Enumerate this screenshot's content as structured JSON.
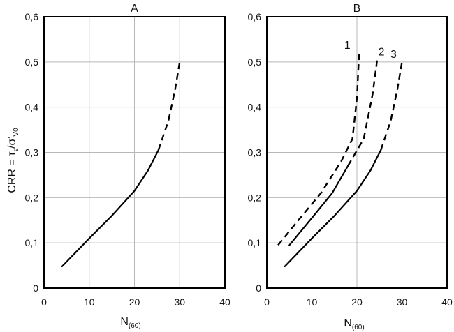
{
  "chart_data": [
    {
      "type": "line",
      "title": "A",
      "xlabel_main": "N",
      "xlabel_sub": "(60)",
      "ylabel": "CRR = τ",
      "ylabel_sub1": "ε",
      "ylabel_mid": "/σ'",
      "ylabel_sub2": "V0",
      "xlim": [
        0,
        40
      ],
      "ylim": [
        0,
        0.6
      ],
      "x_ticks": [
        "0",
        "10",
        "20",
        "30",
        "40"
      ],
      "y_ticks": [
        "0",
        "0,1",
        "0,2",
        "0,3",
        "0,4",
        "0,5",
        "0,6"
      ],
      "grid": true,
      "series": [
        {
          "label": "",
          "solid": [
            [
              4,
              0.048
            ],
            [
              10,
              0.11
            ],
            [
              15,
              0.16
            ],
            [
              20,
              0.215
            ],
            [
              23,
              0.26
            ],
            [
              25.3,
              0.305
            ]
          ],
          "dashed": [
            [
              25.3,
              0.305
            ],
            [
              27.5,
              0.37
            ],
            [
              29,
              0.44
            ],
            [
              30,
              0.5
            ]
          ]
        }
      ]
    },
    {
      "type": "line",
      "title": "B",
      "xlabel_main": "N",
      "xlabel_sub": "(60)",
      "xlim": [
        0,
        40
      ],
      "ylim": [
        0,
        0.6
      ],
      "x_ticks": [
        "0",
        "10",
        "20",
        "30",
        "40"
      ],
      "y_ticks": [
        "0",
        "0,1",
        "0,2",
        "0,3",
        "0,4",
        "0,5",
        "0,6"
      ],
      "grid": true,
      "series": [
        {
          "label": "1",
          "solid": [],
          "dashed": [
            [
              2.5,
              0.095
            ],
            [
              7,
              0.15
            ],
            [
              12,
              0.21
            ],
            [
              16.5,
              0.28
            ],
            [
              19,
              0.33
            ],
            [
              20,
              0.42
            ],
            [
              20.5,
              0.52
            ]
          ]
        },
        {
          "label": "2",
          "solid": [
            [
              5,
              0.095
            ],
            [
              10,
              0.155
            ],
            [
              14.5,
              0.21
            ],
            [
              18,
              0.27
            ]
          ],
          "dashed": [
            [
              18,
              0.27
            ],
            [
              21.5,
              0.33
            ],
            [
              23.5,
              0.43
            ],
            [
              24.5,
              0.505
            ]
          ]
        },
        {
          "label": "3",
          "solid": [
            [
              4,
              0.048
            ],
            [
              10,
              0.11
            ],
            [
              15,
              0.16
            ],
            [
              20,
              0.215
            ],
            [
              23,
              0.26
            ],
            [
              25.3,
              0.305
            ]
          ],
          "dashed": [
            [
              25.3,
              0.305
            ],
            [
              27.5,
              0.37
            ],
            [
              29,
              0.44
            ],
            [
              30,
              0.5
            ]
          ]
        }
      ]
    }
  ]
}
